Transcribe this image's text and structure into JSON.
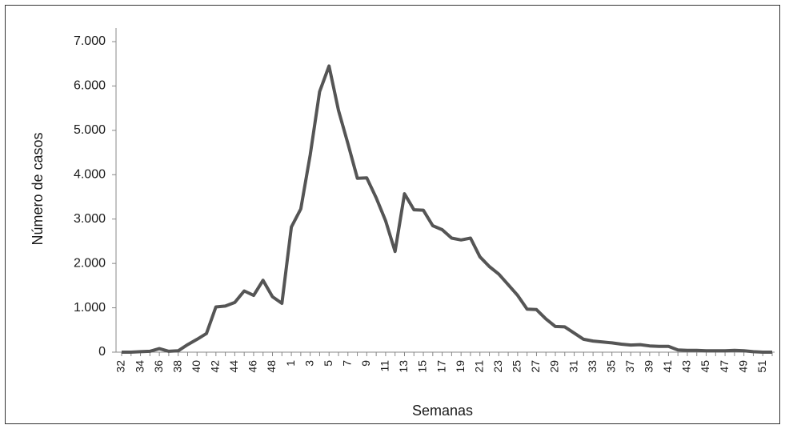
{
  "chart_data": {
    "type": "line",
    "x_label": "Semanas",
    "y_label": "Número de casos",
    "categories": [
      "32",
      null,
      "34",
      null,
      "36",
      null,
      "38",
      null,
      "40",
      null,
      "42",
      null,
      "44",
      null,
      "46",
      null,
      "48",
      null,
      "1",
      null,
      "3",
      null,
      "5",
      null,
      "7",
      null,
      "9",
      null,
      "11",
      null,
      "13",
      null,
      "15",
      null,
      "17",
      null,
      "19",
      null,
      "21",
      null,
      "23",
      null,
      "25",
      null,
      "27",
      null,
      "29",
      null,
      "31",
      null,
      "33",
      null,
      "35",
      null,
      "37",
      null,
      "39",
      null,
      "41",
      null,
      "43",
      null,
      "45",
      null,
      "47",
      null,
      "49",
      null,
      "51",
      null
    ],
    "series": [
      {
        "color": "#555555",
        "values": [
          0,
          0,
          10,
          20,
          80,
          20,
          30,
          170,
          290,
          420,
          1020,
          1040,
          1120,
          1380,
          1280,
          1620,
          1250,
          1100,
          2820,
          3230,
          4450,
          5870,
          6450,
          5450,
          4700,
          3920,
          3930,
          3480,
          2960,
          2270,
          3570,
          3210,
          3200,
          2850,
          2760,
          2570,
          2530,
          2570,
          2150,
          1930,
          1760,
          1520,
          1280,
          970,
          960,
          750,
          580,
          570,
          430,
          290,
          250,
          230,
          210,
          180,
          160,
          170,
          140,
          130,
          130,
          50,
          40,
          40,
          30,
          30,
          30,
          40,
          30,
          10,
          0,
          0
        ]
      }
    ],
    "ylim": [
      0,
      7000
    ],
    "yticks": [
      0,
      {
        "value": 1000,
        "label": "1.000"
      },
      {
        "value": 2000,
        "label": "2.000"
      },
      {
        "value": 3000,
        "label": "3.000"
      },
      {
        "value": 4000,
        "label": "4.000"
      },
      {
        "value": 5000,
        "label": "5.000"
      },
      {
        "value": 6000,
        "label": "6.000"
      },
      {
        "value": 7000,
        "label": "7.000"
      }
    ]
  }
}
